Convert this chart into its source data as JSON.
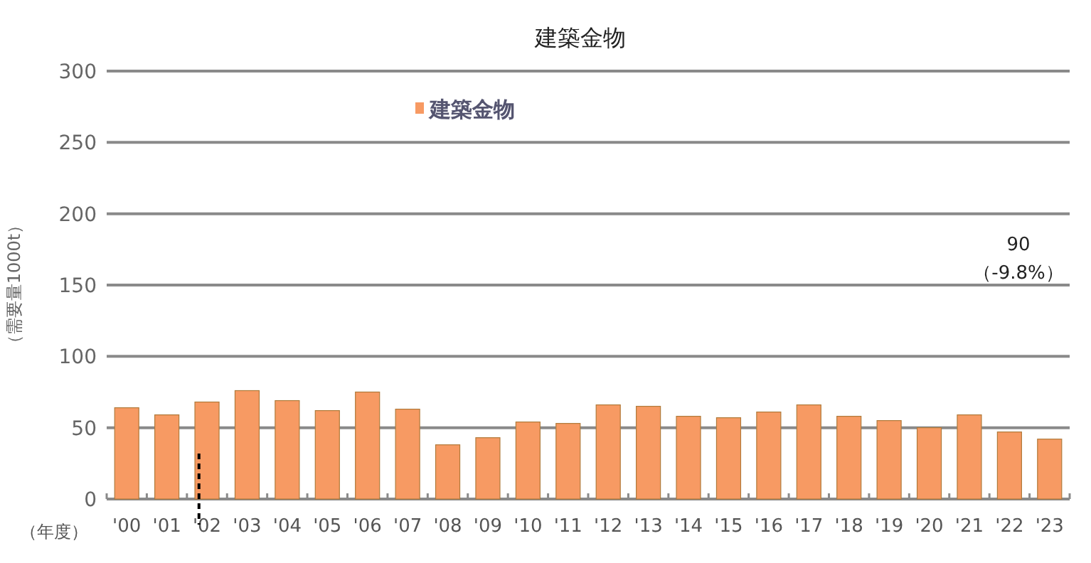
{
  "chart_data": {
    "type": "bar",
    "title": "建築金物",
    "xlabel": "（年度）",
    "ylabel": "（需要量1000t）",
    "categories": [
      "'00",
      "'01",
      "'02",
      "'03",
      "'04",
      "'05",
      "'06",
      "'07",
      "'08",
      "'09",
      "'10",
      "'11",
      "'12",
      "'13",
      "'14",
      "'15",
      "'16",
      "'17",
      "'18",
      "'19",
      "'20",
      "'21",
      "'22",
      "'23"
    ],
    "series": [
      {
        "name": "建築金物",
        "color": "#f79a63",
        "values": [
          64,
          59,
          68,
          76,
          69,
          62,
          75,
          63,
          38,
          43,
          54,
          53,
          66,
          65,
          58,
          57,
          61,
          66,
          58,
          55,
          50,
          59,
          47,
          42
        ]
      }
    ],
    "ylim": [
      0,
      300
    ],
    "yticks": [
      0,
      50,
      100,
      150,
      200,
      250,
      300
    ],
    "grid": "y",
    "legend": "top",
    "ref_lines": [
      {
        "axis": "x",
        "value": "'02",
        "color": "#000000",
        "line_style": "dashed"
      }
    ],
    "annotations": [
      "90",
      "（-9.8%）"
    ]
  }
}
